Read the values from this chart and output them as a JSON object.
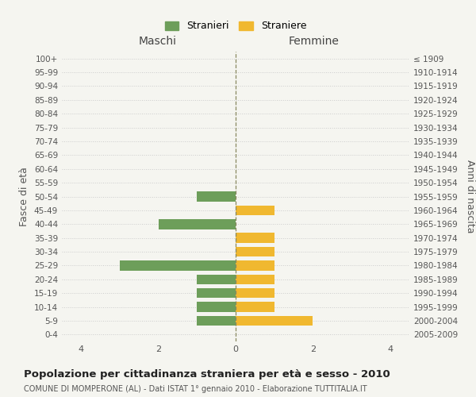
{
  "age_groups": [
    "100+",
    "95-99",
    "90-94",
    "85-89",
    "80-84",
    "75-79",
    "70-74",
    "65-69",
    "60-64",
    "55-59",
    "50-54",
    "45-49",
    "40-44",
    "35-39",
    "30-34",
    "25-29",
    "20-24",
    "15-19",
    "10-14",
    "5-9",
    "0-4"
  ],
  "birth_years": [
    "≤ 1909",
    "1910-1914",
    "1915-1919",
    "1920-1924",
    "1925-1929",
    "1930-1934",
    "1935-1939",
    "1940-1944",
    "1945-1949",
    "1950-1954",
    "1955-1959",
    "1960-1964",
    "1965-1969",
    "1970-1974",
    "1975-1979",
    "1980-1984",
    "1985-1989",
    "1990-1994",
    "1995-1999",
    "2000-2004",
    "2005-2009"
  ],
  "maschi": [
    0,
    0,
    0,
    0,
    0,
    0,
    0,
    0,
    0,
    0,
    1,
    0,
    2,
    0,
    0,
    3,
    1,
    1,
    1,
    1,
    0
  ],
  "femmine": [
    0,
    0,
    0,
    0,
    0,
    0,
    0,
    0,
    0,
    0,
    0,
    1,
    0,
    1,
    1,
    1,
    1,
    1,
    1,
    2,
    0
  ],
  "color_maschi": "#6d9e5a",
  "color_femmine": "#f0b830",
  "title": "Popolazione per cittadinanza straniera per età e sesso - 2010",
  "subtitle": "COMUNE DI MOMPERONE (AL) - Dati ISTAT 1° gennaio 2010 - Elaborazione TUTTITALIA.IT",
  "xlabel_left": "Maschi",
  "xlabel_right": "Femmine",
  "ylabel_left": "Fasce di età",
  "ylabel_right": "Anni di nascita",
  "legend_maschi": "Stranieri",
  "legend_femmine": "Straniere",
  "xlim": 4.5,
  "xticks": [
    -4,
    -2,
    0,
    2,
    4
  ],
  "xticklabels": [
    "4",
    "2",
    "0",
    "2",
    "4"
  ],
  "background_color": "#f5f5f0"
}
